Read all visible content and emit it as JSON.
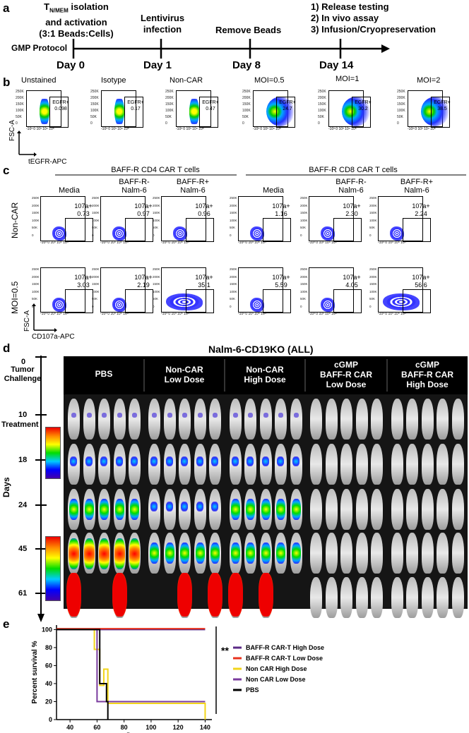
{
  "panel_a": {
    "letter": "a",
    "step0_line1": "T",
    "step0_sub": "N/MEM",
    "step0_line1b": " isolation",
    "step0_line2": "and activation",
    "step0_line3": "(3:1 Beads:Cells)",
    "step1": "Lentivirus",
    "step1b": "infection",
    "step2": "Remove Beads",
    "step3a": "1) Release testing",
    "step3b": "2) In vivo assay",
    "step3c": "3) Infusion/Cryopreservation",
    "gmp": "GMP Protocol",
    "days": [
      "Day 0",
      "Day 1",
      "Day 8",
      "Day 14"
    ]
  },
  "panel_b": {
    "letter": "b",
    "titles": [
      "Unstained",
      "Isotype",
      "Non-CAR",
      "MOI=0.5",
      "MOI=1",
      "MOI=2"
    ],
    "gate_label": "EGFR+",
    "values": [
      "0.098",
      "0.17",
      "0.47",
      "24.7",
      "30.2",
      "38.5"
    ],
    "yaxis": "FSC-A",
    "xaxis": "tEGFR-APC",
    "yticks": [
      "250K",
      "200K",
      "150K",
      "100K",
      "50K",
      "0"
    ],
    "xticks": "-10³ 0 10³ 10⁴ 10⁵"
  },
  "panel_c": {
    "letter": "c",
    "group1": "BAFF-R CD4 CAR T cells",
    "group2": "BAFF-R CD8 CAR T cells",
    "cols": [
      "Media",
      "BAFF-R-",
      "Nalm-6",
      "BAFF-R+",
      "Nalm-6",
      "Media",
      "BAFF-R-",
      "Nalm-6",
      "BAFF-R+",
      "Nalm-6"
    ],
    "row1": "Non-CAR",
    "row2": "MOI=0.5",
    "gate_label": "107a+",
    "values_row1": [
      "0.73",
      "0.97",
      "0.96",
      "1.16",
      "2.30",
      "2.24"
    ],
    "values_row2": [
      "3.03",
      "2.19",
      "35.1",
      "5.59",
      "4.05",
      "56.6"
    ],
    "yaxis": "FSC-A",
    "xaxis": "CD107a-APC"
  },
  "panel_d": {
    "letter": "d",
    "title": "Nalm-6-CD19KO (ALL)",
    "groups": [
      {
        "l1": "PBS",
        "l2": "",
        "l3": ""
      },
      {
        "l1": "Non-CAR",
        "l2": "Low Dose",
        "l3": ""
      },
      {
        "l1": "Non-CAR",
        "l2": "High Dose",
        "l3": ""
      },
      {
        "l1": "cGMP",
        "l2": "BAFF-R CAR",
        "l3": "Low Dose"
      },
      {
        "l1": "cGMP",
        "l2": "BAFF-R CAR",
        "l3": "High Dose"
      }
    ],
    "timeline": {
      "d0": "0",
      "tumor1": "Tumor",
      "tumor2": "Challenge",
      "d10": "10",
      "treat": "Treatment",
      "d18": "18",
      "d24": "24",
      "d45": "45",
      "d61": "61",
      "axis": "Days"
    }
  },
  "panel_e": {
    "letter": "e",
    "sig": "**"
  },
  "chart_data": {
    "type": "line",
    "title": "",
    "xlabel": "Days",
    "ylabel": "Percent survival %",
    "xlim": [
      30,
      145
    ],
    "ylim": [
      0,
      105
    ],
    "xticks": [
      40,
      60,
      80,
      100,
      120,
      140
    ],
    "yticks": [
      0,
      20,
      40,
      60,
      80,
      100
    ],
    "legend_position": "right",
    "series": [
      {
        "name": "BAFF-R CAR-T High Dose",
        "color": "#5b2a86",
        "x": [
          30,
          140
        ],
        "y": [
          100,
          100
        ]
      },
      {
        "name": "BAFF-R CAR-T Low Dose",
        "color": "#e8321e",
        "x": [
          30,
          140
        ],
        "y": [
          101,
          101
        ]
      },
      {
        "name": "Non CAR High Dose",
        "color": "#f2d51a",
        "x": [
          30,
          55,
          58,
          62,
          65,
          68,
          140,
          140
        ],
        "y": [
          100,
          100,
          78,
          38,
          56,
          18,
          18,
          0
        ]
      },
      {
        "name": "Non CAR Low Dose",
        "color": "#7a3b9e",
        "x": [
          30,
          58,
          60,
          62,
          140
        ],
        "y": [
          100,
          100,
          20,
          20,
          20
        ]
      },
      {
        "name": "PBS",
        "color": "#000000",
        "x": [
          30,
          60,
          62,
          67,
          68
        ],
        "y": [
          100,
          100,
          40,
          20,
          0
        ]
      }
    ]
  }
}
